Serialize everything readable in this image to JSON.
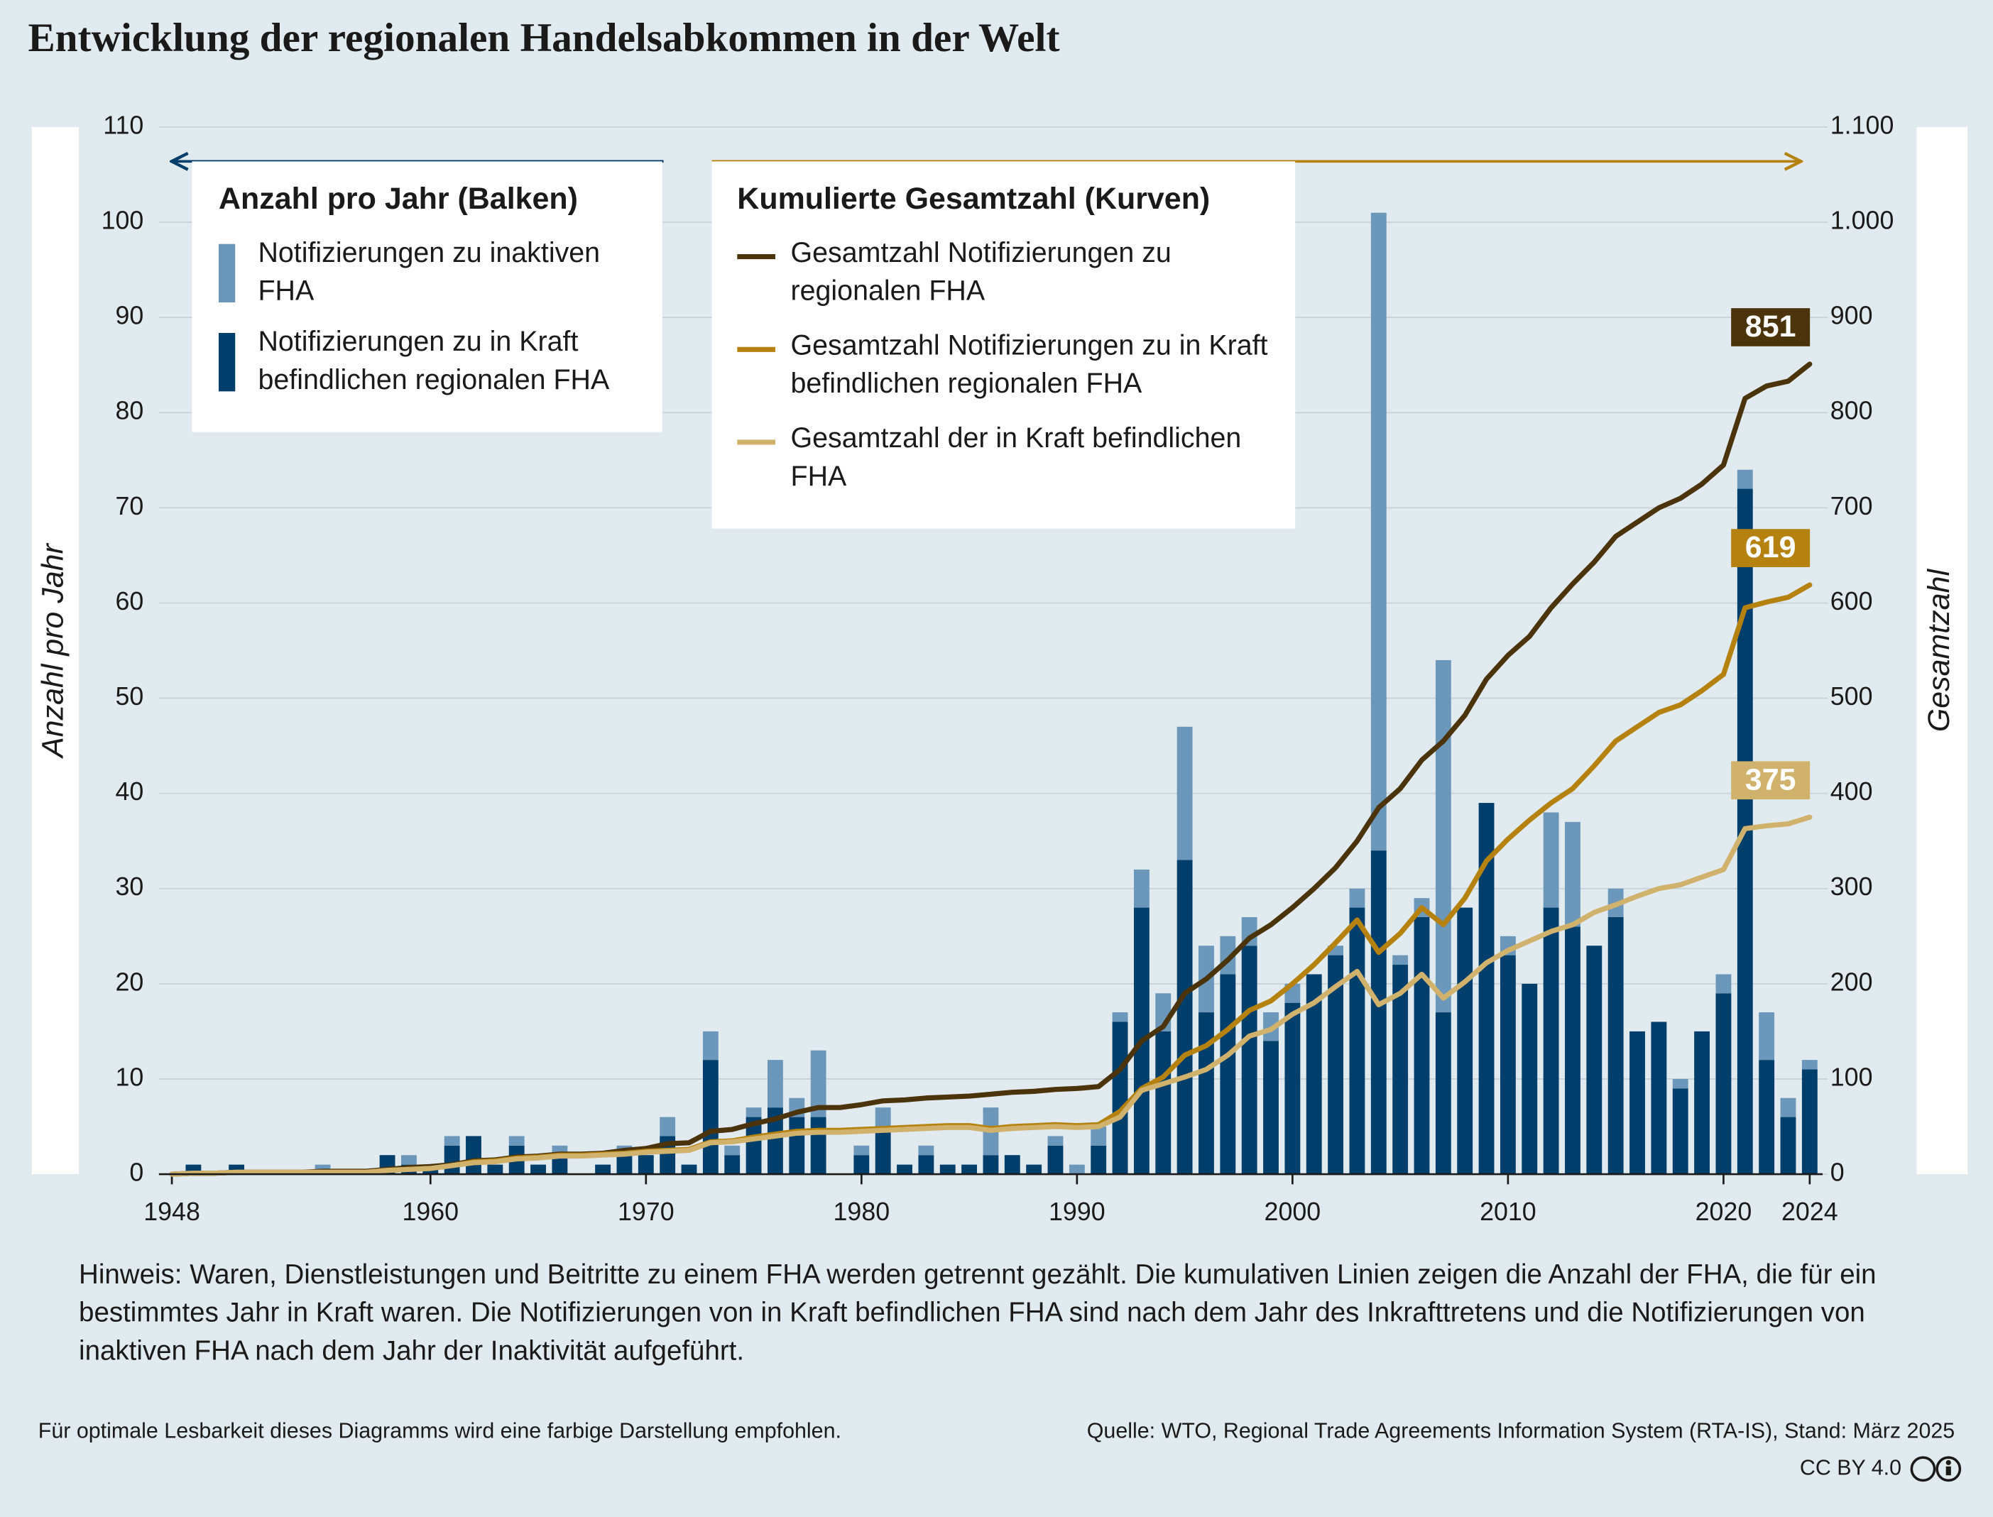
{
  "chart_data": {
    "type": "combo",
    "title": "Entwicklung der regionalen Handelsabkommen in der Welt",
    "y_label": "Anzahl pro Jahr",
    "y2_label": "Gesamtzahl",
    "bars_legend_title": "Anzahl pro Jahr (Balken)",
    "lines_legend_title": "Kumulierte Gesamtzahl (Kurven)",
    "x": [
      1948,
      1949,
      1950,
      1951,
      1952,
      1953,
      1954,
      1955,
      1956,
      1957,
      1958,
      1959,
      1960,
      1961,
      1962,
      1963,
      1964,
      1965,
      1966,
      1967,
      1968,
      1969,
      1970,
      1971,
      1972,
      1973,
      1974,
      1975,
      1976,
      1977,
      1978,
      1979,
      1980,
      1981,
      1982,
      1983,
      1984,
      1985,
      1986,
      1987,
      1988,
      1989,
      1990,
      1991,
      1992,
      1993,
      1994,
      1995,
      1996,
      1997,
      1998,
      1999,
      2000,
      2001,
      2002,
      2003,
      2004,
      2005,
      2006,
      2007,
      2008,
      2009,
      2010,
      2011,
      2012,
      2013,
      2014,
      2015,
      2016,
      2017,
      2018,
      2019,
      2020,
      2021,
      2022,
      2023,
      2024
    ],
    "xlim": [
      1947.4,
      2024.6
    ],
    "xticks": [
      1948,
      1960,
      1970,
      1980,
      1990,
      2000,
      2010,
      2020,
      2024
    ],
    "ylim": [
      0,
      110
    ],
    "yticks": [
      0,
      10,
      20,
      30,
      40,
      50,
      60,
      70,
      80,
      90,
      100,
      110
    ],
    "y2lim": [
      0,
      1100
    ],
    "y2ticks": [
      0,
      100,
      200,
      300,
      400,
      500,
      600,
      700,
      800,
      900,
      {
        "value": 1000,
        "label": "1.000"
      },
      {
        "value": 1100,
        "label": "1.100"
      }
    ],
    "grid": true,
    "series": [
      {
        "name": "Notifizierungen zu inaktiven FHA",
        "type": "bar",
        "color": "#6b97ba",
        "values": [
          0,
          0,
          0,
          0,
          0,
          0,
          0,
          1,
          0,
          0,
          0,
          1,
          0,
          1,
          0,
          0,
          1,
          0,
          1,
          0,
          0,
          1,
          0,
          2,
          0,
          3,
          1,
          1,
          5,
          2,
          7,
          0,
          1,
          2,
          0,
          1,
          0,
          0,
          5,
          0,
          0,
          1,
          1,
          2,
          1,
          4,
          4,
          14,
          7,
          4,
          3,
          3,
          2,
          0,
          1,
          2,
          67,
          1,
          2,
          37,
          0,
          0,
          2,
          0,
          10,
          11,
          0,
          3,
          0,
          0,
          1,
          0,
          2,
          2,
          5,
          2,
          1
        ]
      },
      {
        "name": "Notifizierungen zu in Kraft befindlichen regionalen FHA",
        "type": "bar",
        "color": "#003e6b",
        "values": [
          0,
          1,
          0,
          1,
          0,
          0,
          0,
          0,
          0,
          0,
          2,
          1,
          1,
          3,
          4,
          1,
          3,
          1,
          2,
          0,
          1,
          2,
          2,
          4,
          1,
          12,
          2,
          6,
          7,
          6,
          6,
          0,
          2,
          5,
          1,
          2,
          1,
          1,
          2,
          2,
          1,
          3,
          0,
          3,
          16,
          28,
          15,
          33,
          17,
          21,
          24,
          14,
          18,
          21,
          23,
          28,
          34,
          22,
          27,
          17,
          28,
          39,
          23,
          20,
          28,
          26,
          24,
          27,
          15,
          16,
          9,
          15,
          19,
          72,
          12,
          6,
          11
        ]
      },
      {
        "name": "Gesamtzahl Notifizierungen zu regionalen FHA",
        "type": "line",
        "axis": "y2",
        "color": "#4b340c",
        "values": [
          0,
          1,
          1,
          2,
          2,
          2,
          2,
          3,
          3,
          3,
          5,
          7,
          8,
          10,
          14,
          15,
          18,
          19,
          21,
          21,
          22,
          25,
          27,
          32,
          33,
          45,
          47,
          53,
          58,
          65,
          70,
          70,
          73,
          77,
          78,
          80,
          81,
          82,
          84,
          86,
          87,
          89,
          90,
          92,
          110,
          140,
          155,
          190,
          205,
          225,
          248,
          262,
          280,
          300,
          322,
          350,
          385,
          405,
          435,
          455,
          482,
          520,
          545,
          565,
          595,
          620,
          643,
          670,
          685,
          700,
          710,
          725,
          745,
          815,
          828,
          833,
          851
        ]
      },
      {
        "name": "Gesamtzahl Notifizierungen zu in Kraft befindlichen regionalen FHA",
        "type": "line",
        "axis": "y2",
        "color": "#b5820f",
        "values": [
          0,
          1,
          1,
          2,
          2,
          2,
          2,
          2,
          2,
          2,
          4,
          5,
          6,
          9,
          13,
          14,
          17,
          18,
          20,
          20,
          21,
          22,
          24,
          25,
          26,
          34,
          35,
          39,
          42,
          45,
          46,
          46,
          47,
          48,
          49,
          50,
          51,
          51,
          48,
          50,
          51,
          52,
          51,
          52,
          66,
          90,
          102,
          125,
          135,
          152,
          172,
          182,
          200,
          220,
          243,
          267,
          233,
          253,
          280,
          262,
          290,
          329,
          352,
          372,
          390,
          405,
          429,
          455,
          470,
          485,
          493,
          508,
          525,
          595,
          601,
          606,
          619
        ]
      },
      {
        "name": "Gesamtzahl der in Kraft befindlichen FHA",
        "type": "line",
        "axis": "y2",
        "color": "#d0b26d",
        "values": [
          0,
          1,
          1,
          2,
          2,
          2,
          2,
          2,
          2,
          2,
          4,
          5,
          6,
          9,
          12,
          13,
          16,
          17,
          19,
          19,
          20,
          21,
          23,
          24,
          25,
          33,
          34,
          37,
          40,
          43,
          44,
          44,
          45,
          46,
          47,
          48,
          49,
          49,
          46,
          48,
          49,
          50,
          49,
          50,
          60,
          88,
          95,
          102,
          110,
          125,
          145,
          152,
          168,
          180,
          197,
          213,
          178,
          190,
          210,
          185,
          202,
          222,
          235,
          245,
          255,
          262,
          275,
          283,
          292,
          300,
          304,
          312,
          320,
          363,
          366,
          368,
          375
        ]
      }
    ],
    "note": "Hinweis: Waren, Dienstleistungen und Beitritte zu einem FHA werden getrennt gezählt. Die kumulativen Linien zeigen die Anzahl der FHA, die für ein bestimmtes Jahr in Kraft waren. Die Notifizierungen von in Kraft befindlichen FHA sind nach dem Jahr des Inkrafttretens und die Notifizierungen von inaktiven FHA nach dem Jahr der Inaktivität aufgeführt.",
    "footer_left": "Für optimale Lesbarkeit dieses Diagramms wird eine farbige Darstellung empfohlen.",
    "source": "Quelle: WTO, Regional Trade Agreements Information System (RTA-IS), Stand: März 2025",
    "license": "CC BY 4.0"
  }
}
